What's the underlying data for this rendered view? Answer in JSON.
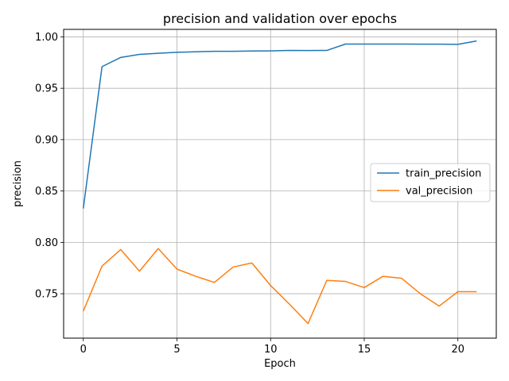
{
  "chart_data": {
    "type": "line",
    "title": "precision and validation over epochs",
    "xlabel": "Epoch",
    "ylabel": "precision",
    "xlim": [
      -1.05,
      22.05
    ],
    "ylim": [
      0.7068,
      1.0073
    ],
    "xticks": [
      0,
      5,
      10,
      15,
      20
    ],
    "yticks": [
      0.75,
      0.8,
      0.85,
      0.9,
      0.95,
      1.0
    ],
    "ytick_labels": [
      "0.75",
      "0.80",
      "0.85",
      "0.90",
      "0.95",
      "1.00"
    ],
    "grid": true,
    "legend_position": "center-right",
    "x": [
      0,
      1,
      2,
      3,
      4,
      5,
      6,
      7,
      8,
      9,
      10,
      11,
      12,
      13,
      14,
      15,
      16,
      17,
      18,
      19,
      20,
      21
    ],
    "series": [
      {
        "name": "train_precision",
        "color": "#1f77b4",
        "values": [
          0.833,
          0.971,
          0.98,
          0.983,
          0.984,
          0.985,
          0.9855,
          0.986,
          0.986,
          0.9862,
          0.9863,
          0.9868,
          0.9867,
          0.9868,
          0.993,
          0.993,
          0.993,
          0.993,
          0.9929,
          0.9929,
          0.9927,
          0.996
        ]
      },
      {
        "name": "val_precision",
        "color": "#ff7f0e",
        "values": [
          0.733,
          0.777,
          0.793,
          0.772,
          0.794,
          0.774,
          0.767,
          0.761,
          0.776,
          0.78,
          0.758,
          0.74,
          0.721,
          0.763,
          0.762,
          0.756,
          0.767,
          0.765,
          0.75,
          0.738,
          0.752,
          0.752
        ]
      }
    ]
  }
}
